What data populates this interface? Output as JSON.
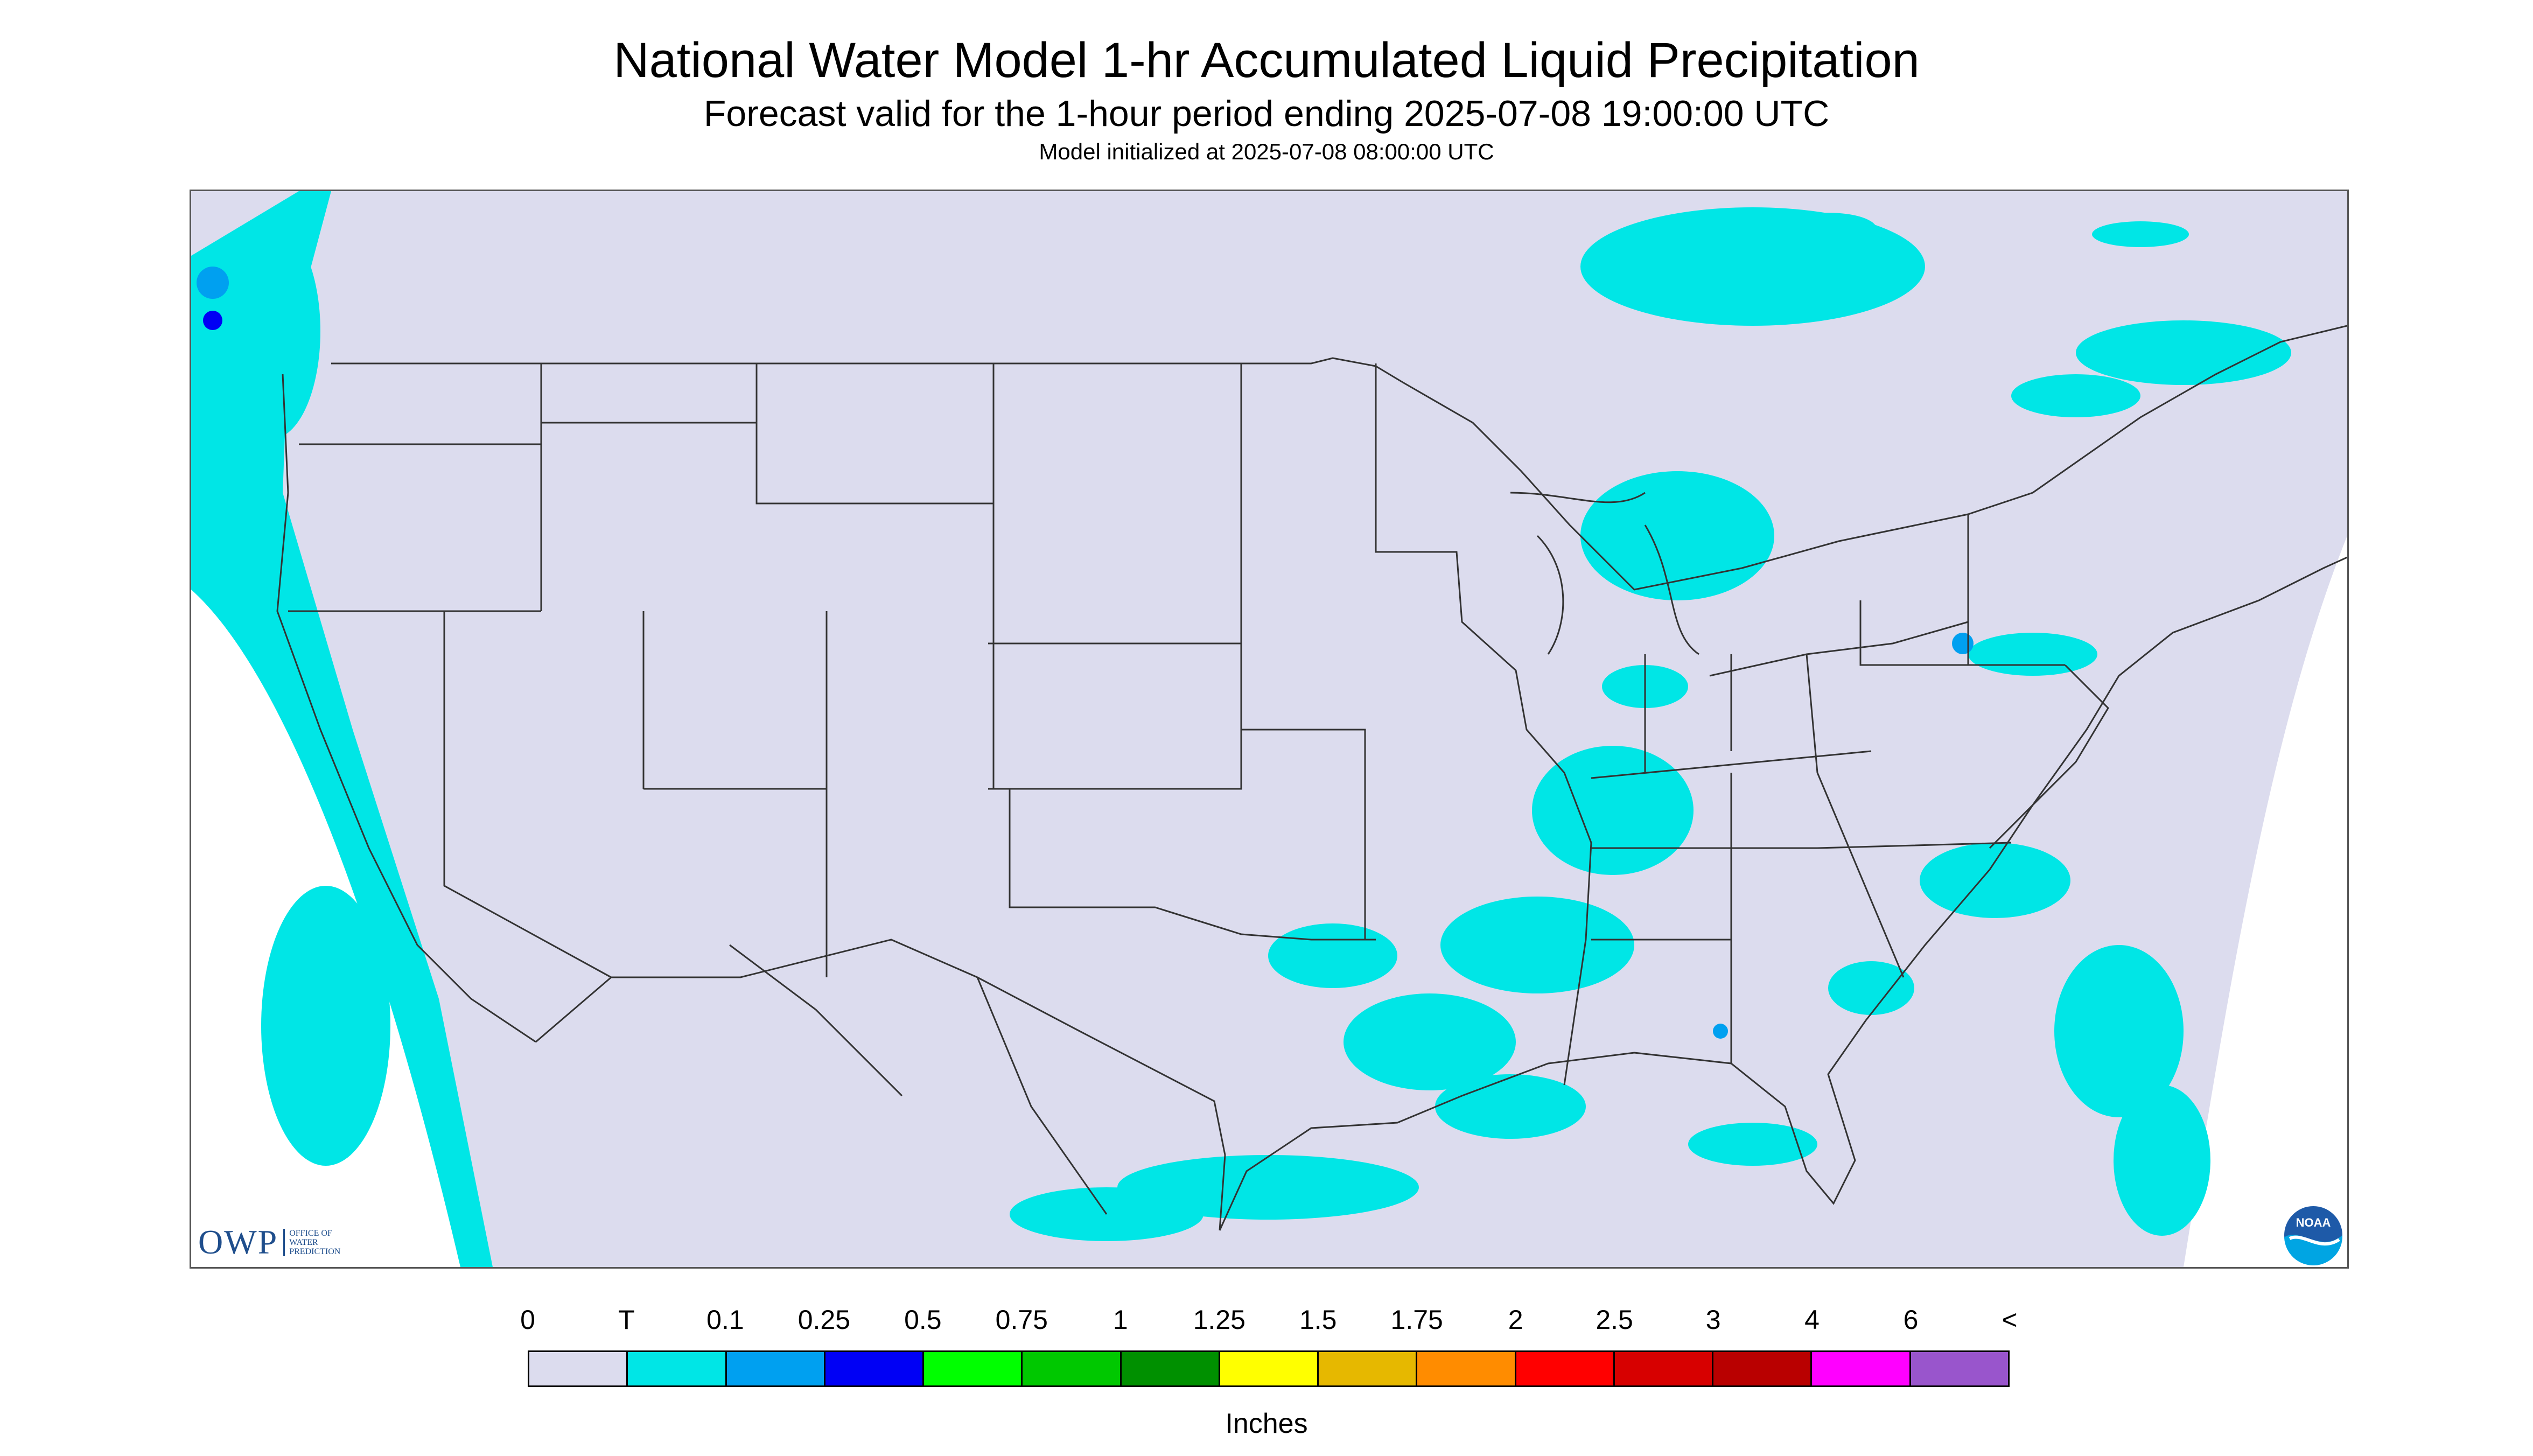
{
  "header": {
    "title": "National Water Model 1-hr Accumulated Liquid Precipitation",
    "subtitle": "Forecast valid for the 1-hour period ending 2025-07-08 19:00:00 UTC",
    "init": "Model initialized at 2025-07-08 08:00:00 UTC"
  },
  "map": {
    "background_color": "#dcdcee",
    "outside_color": "#ffffff",
    "border_color": "#333333"
  },
  "logos": {
    "owp_mark": "OWP",
    "owp_lines": [
      "OFFICE OF",
      "WATER",
      "PREDICTION"
    ],
    "noaa_text": "NOAA"
  },
  "legend": {
    "labels": [
      "0",
      "T",
      "0.1",
      "0.25",
      "0.5",
      "0.75",
      "1",
      "1.25",
      "1.5",
      "1.75",
      "2",
      "2.5",
      "3",
      "4",
      "6",
      "<"
    ],
    "colors": [
      "#dcdcee",
      "#00e6e6",
      "#00a0f0",
      "#0000f5",
      "#00ff00",
      "#00c800",
      "#009000",
      "#ffff00",
      "#e6b800",
      "#ff8c00",
      "#ff0000",
      "#d70000",
      "#b90000",
      "#ff00ff",
      "#9955cc"
    ],
    "units": "Inches"
  }
}
